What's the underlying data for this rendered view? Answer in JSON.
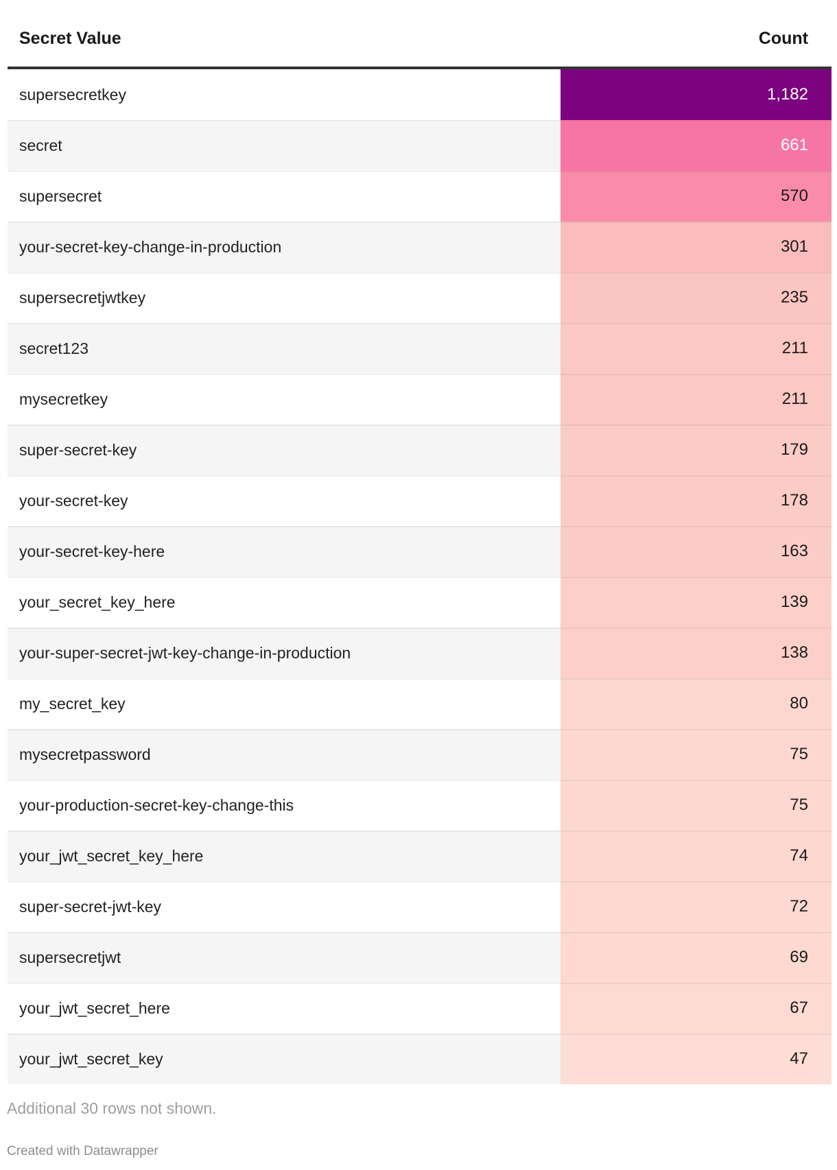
{
  "table": {
    "columns": [
      "Secret Value",
      "Count"
    ],
    "rows": [
      {
        "label": "supersecretkey",
        "count": "1,182",
        "value": 1182,
        "bg": "#7c0380",
        "fg": "#ffffff"
      },
      {
        "label": "secret",
        "count": "661",
        "value": 661,
        "bg": "#f775a5",
        "fg": "#ffffff"
      },
      {
        "label": "supersecret",
        "count": "570",
        "value": 570,
        "bg": "#f88ca9",
        "fg": "#1a1a1a"
      },
      {
        "label": "your-secret-key-change-in-production",
        "count": "301",
        "value": 301,
        "bg": "#fabcbd",
        "fg": "#1a1a1a"
      },
      {
        "label": "supersecretjwtkey",
        "count": "235",
        "value": 235,
        "bg": "#fbc5c1",
        "fg": "#1a1a1a"
      },
      {
        "label": "secret123",
        "count": "211",
        "value": 211,
        "bg": "#fbc8c3",
        "fg": "#1a1a1a"
      },
      {
        "label": "mysecretkey",
        "count": "211",
        "value": 211,
        "bg": "#fbc8c3",
        "fg": "#1a1a1a"
      },
      {
        "label": "super-secret-key",
        "count": "179",
        "value": 179,
        "bg": "#fbcbc5",
        "fg": "#1a1a1a"
      },
      {
        "label": "your-secret-key",
        "count": "178",
        "value": 178,
        "bg": "#fbcbc5",
        "fg": "#1a1a1a"
      },
      {
        "label": "your-secret-key-here",
        "count": "163",
        "value": 163,
        "bg": "#fccdc7",
        "fg": "#1a1a1a"
      },
      {
        "label": "your_secret_key_here",
        "count": "139",
        "value": 139,
        "bg": "#fcd0c9",
        "fg": "#1a1a1a"
      },
      {
        "label": "your-super-secret-jwt-key-change-in-production",
        "count": "138",
        "value": 138,
        "bg": "#fcd0c9",
        "fg": "#1a1a1a"
      },
      {
        "label": "my_secret_key",
        "count": "80",
        "value": 80,
        "bg": "#fdd7cf",
        "fg": "#1a1a1a"
      },
      {
        "label": "mysecretpassword",
        "count": "75",
        "value": 75,
        "bg": "#fdd8d0",
        "fg": "#1a1a1a"
      },
      {
        "label": "your-production-secret-key-change-this",
        "count": "75",
        "value": 75,
        "bg": "#fdd8d0",
        "fg": "#1a1a1a"
      },
      {
        "label": "your_jwt_secret_key_here",
        "count": "74",
        "value": 74,
        "bg": "#fdd8d0",
        "fg": "#1a1a1a"
      },
      {
        "label": "super-secret-jwt-key",
        "count": "72",
        "value": 72,
        "bg": "#fdd9d1",
        "fg": "#1a1a1a"
      },
      {
        "label": "supersecretjwt",
        "count": "69",
        "value": 69,
        "bg": "#fdd9d1",
        "fg": "#1a1a1a"
      },
      {
        "label": "your_jwt_secret_here",
        "count": "67",
        "value": 67,
        "bg": "#fddad2",
        "fg": "#1a1a1a"
      },
      {
        "label": "your_jwt_secret_key",
        "count": "47",
        "value": 47,
        "bg": "#fdddd5",
        "fg": "#1a1a1a"
      }
    ]
  },
  "colors": {
    "zebra_odd": "#ffffff",
    "zebra_even": "#f5f5f5",
    "header_rule": "#333333",
    "heat_max": "#7c0380",
    "heat_min": "#fdddd5"
  },
  "footer": {
    "additional_note": "Additional 30 rows not shown.",
    "credit": "Created with Datawrapper"
  },
  "chart_data": {
    "type": "table",
    "title": "",
    "columns": [
      "Secret Value",
      "Count"
    ],
    "categories": [
      "supersecretkey",
      "secret",
      "supersecret",
      "your-secret-key-change-in-production",
      "supersecretjwtkey",
      "secret123",
      "mysecretkey",
      "super-secret-key",
      "your-secret-key",
      "your-secret-key-here",
      "your_secret_key_here",
      "your-super-secret-jwt-key-change-in-production",
      "my_secret_key",
      "mysecretpassword",
      "your-production-secret-key-change-this",
      "your_jwt_secret_key_here",
      "super-secret-jwt-key",
      "supersecretjwt",
      "your_jwt_secret_here",
      "your_jwt_secret_key"
    ],
    "values": [
      1182,
      661,
      570,
      301,
      235,
      211,
      211,
      179,
      178,
      163,
      139,
      138,
      80,
      75,
      75,
      74,
      72,
      69,
      67,
      47
    ],
    "heatmap_column": "Count",
    "hidden_rows_note": "Additional 30 rows not shown."
  }
}
